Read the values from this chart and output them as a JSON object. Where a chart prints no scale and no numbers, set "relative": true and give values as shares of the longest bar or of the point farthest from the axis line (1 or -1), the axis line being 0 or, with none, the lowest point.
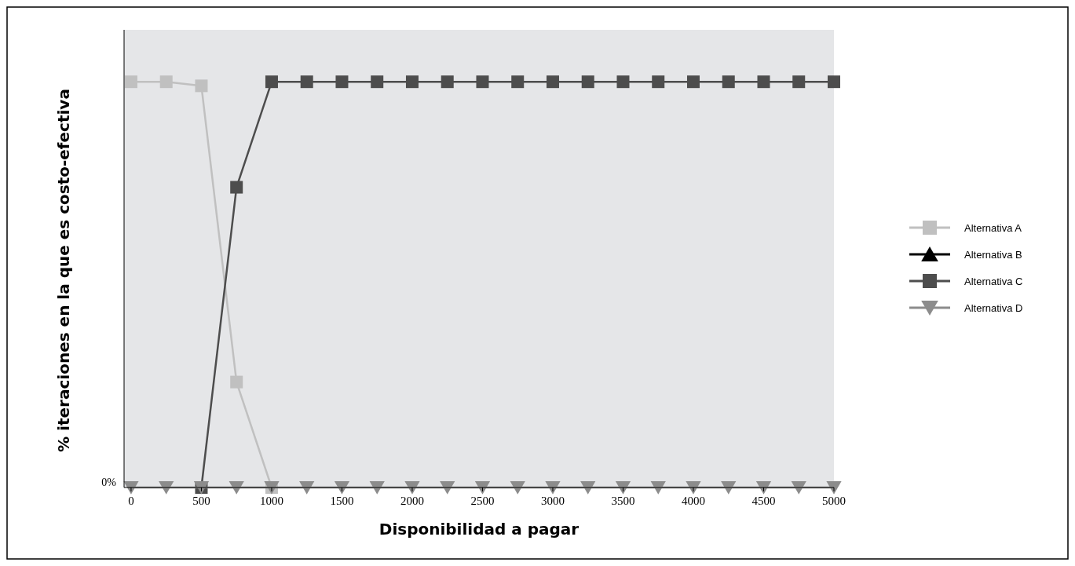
{
  "chart_data": {
    "type": "line",
    "relative": true,
    "xlabel": "Disponibilidad a pagar",
    "ylabel": "% iteraciones en la que es costo-efectiva",
    "x": [
      0,
      250,
      500,
      750,
      1000,
      1250,
      1500,
      1750,
      2000,
      2250,
      2500,
      2750,
      3000,
      3250,
      3500,
      3750,
      4000,
      4250,
      4500,
      4750,
      5000
    ],
    "xlim": [
      -50,
      5000
    ],
    "xticks": [
      0,
      500,
      1000,
      1500,
      2000,
      2500,
      3000,
      3500,
      4000,
      4500,
      5000
    ],
    "annotations": [
      "0%"
    ],
    "legend": "right",
    "line_style": "solid",
    "series": [
      {
        "name": "Alternativa A",
        "color": "#c0c0c0",
        "marker": "square",
        "values": [
          1,
          1,
          0.99,
          0.26,
          0,
          null,
          null,
          null,
          null,
          null,
          null,
          null,
          null,
          null,
          null,
          null,
          null,
          null,
          null,
          null,
          null
        ]
      },
      {
        "name": "Alternativa B",
        "color": "#000000",
        "marker": "triangle",
        "values": [
          null,
          null,
          null,
          null,
          null,
          null,
          null,
          null,
          null,
          null,
          null,
          null,
          null,
          null,
          null,
          null,
          null,
          null,
          null,
          null,
          null
        ]
      },
      {
        "name": "Alternativa C",
        "color": "#4d4d4d",
        "marker": "square",
        "values": [
          null,
          null,
          0,
          0.74,
          1,
          1,
          1,
          1,
          1,
          1,
          1,
          1,
          1,
          1,
          1,
          1,
          1,
          1,
          1,
          1,
          1
        ]
      },
      {
        "name": "Alternativa D",
        "color": "#8c8c8c",
        "marker": "triangle-down",
        "values": [
          0,
          0,
          0,
          0,
          0,
          0,
          0,
          0,
          0,
          0,
          0,
          0,
          0,
          0,
          0,
          0,
          0,
          0,
          0,
          0,
          0
        ]
      }
    ]
  }
}
